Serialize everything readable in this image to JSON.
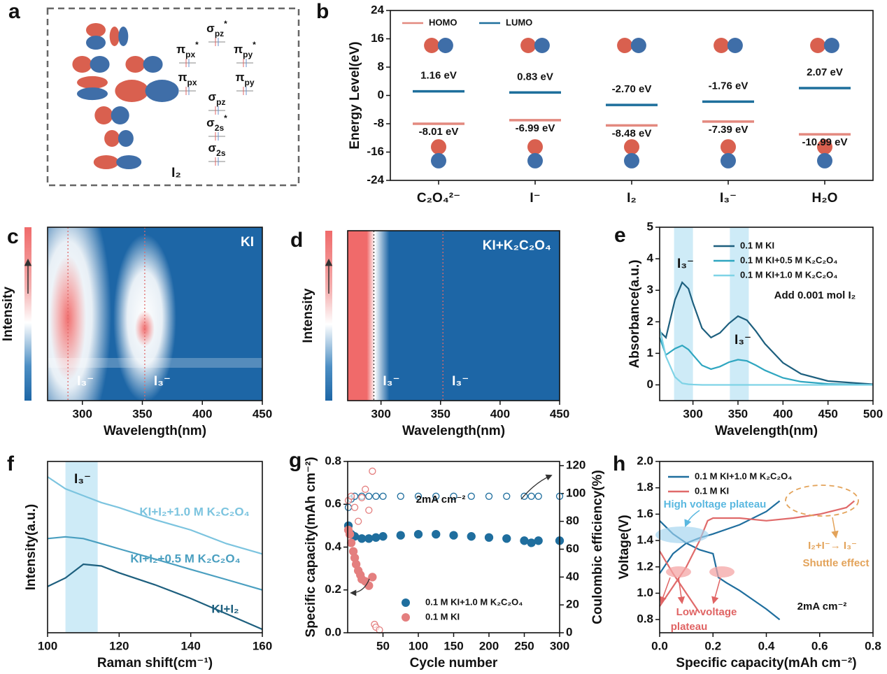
{
  "chart_data": [
    {
      "type": "diagram",
      "panel": "a",
      "title": "I₂",
      "levels": [
        {
          "symbol": "σ",
          "sub": "pz",
          "sup": "*"
        },
        {
          "symbol": "π",
          "sub": "px",
          "sup": "*"
        },
        {
          "symbol": "π",
          "sub": "py",
          "sup": "*"
        },
        {
          "symbol": "π",
          "sub": "px"
        },
        {
          "symbol": "π",
          "sub": "py"
        },
        {
          "symbol": "σ",
          "sub": "pz"
        },
        {
          "symbol": "σ",
          "sub": "2s",
          "sup": "*"
        },
        {
          "symbol": "σ",
          "sub": "2s"
        }
      ]
    },
    {
      "type": "energy_levels",
      "panel": "b",
      "ylabel": "Energy Level(eV)",
      "categories": [
        "C₂O₄²⁻",
        "I⁻",
        "I₂",
        "I₃⁻",
        "H₂O"
      ],
      "ylim": [
        -24,
        24
      ],
      "yticks": [
        -24,
        -16,
        -8,
        0,
        8,
        16,
        24
      ],
      "legend": "upper left",
      "series": [
        {
          "name": "HOMO",
          "color": "#e3897f",
          "values": [
            -8.01,
            -6.99,
            -8.48,
            -7.39,
            -10.99
          ],
          "value_labels": [
            "-8.01 eV",
            "-6.99 eV",
            "-8.48 eV",
            "-7.39 eV",
            "-10.99 eV"
          ]
        },
        {
          "name": "LUMO",
          "color": "#1e6f9c",
          "values": [
            1.16,
            0.83,
            -2.7,
            -1.76,
            2.07
          ],
          "value_labels": [
            "1.16 eV",
            "0.83 eV",
            "-2.70 eV",
            "-1.76 eV",
            "2.07 eV"
          ]
        }
      ]
    },
    {
      "type": "heatmap",
      "panel": "c",
      "title": "KI",
      "xlabel": "Wavelength(nm)",
      "ylabel": "Intensity",
      "xlim": [
        271,
        450
      ],
      "xticks": [
        300,
        350,
        400,
        450
      ],
      "peaks": [
        288,
        352
      ],
      "peak_labels": [
        "I₃⁻",
        "I₃⁻"
      ]
    },
    {
      "type": "heatmap",
      "panel": "d",
      "title": "KI+K₂C₂O₄",
      "xlabel": "Wavelength(nm)",
      "ylabel": "Intensity",
      "xlim": [
        272,
        450
      ],
      "xticks": [
        300,
        350,
        400,
        450
      ],
      "peaks": [
        294,
        352
      ],
      "peak_labels": [
        "I₃⁻",
        "I₃⁻"
      ]
    },
    {
      "type": "line",
      "panel": "e",
      "xlabel": "Wavelength(nm)",
      "ylabel": "Absorbance(a.u.)",
      "xlim": [
        263,
        500
      ],
      "xticks": [
        300,
        350,
        400,
        450,
        500
      ],
      "ylim": [
        -0.5,
        5
      ],
      "yticks": [
        0,
        1,
        2,
        3,
        4,
        5
      ],
      "legend": "upper right",
      "bands": [
        [
          279,
          300
        ],
        [
          341,
          362
        ]
      ],
      "band_labels": [
        "I₃⁻",
        "I₃⁻"
      ],
      "annotations": [
        {
          "text": "Add 0.001 mol I₂",
          "color": "#111111"
        }
      ],
      "x": [
        263,
        270,
        280,
        288,
        295,
        300,
        310,
        320,
        330,
        340,
        350,
        360,
        370,
        380,
        400,
        420,
        450,
        500
      ],
      "series": [
        {
          "name": "0.1 M KI",
          "color": "#1d5f7e",
          "values": [
            1.7,
            1.5,
            2.7,
            3.25,
            3.05,
            2.6,
            1.8,
            1.5,
            1.65,
            1.95,
            2.18,
            2.05,
            1.7,
            1.3,
            0.7,
            0.35,
            0.12,
            0.02
          ]
        },
        {
          "name": "0.1 M KI+0.5 M K₂C₂O₄",
          "color": "#2fa6c0",
          "values": [
            1.5,
            0.95,
            1.15,
            1.25,
            1.12,
            0.95,
            0.62,
            0.5,
            0.58,
            0.72,
            0.8,
            0.76,
            0.62,
            0.46,
            0.22,
            0.1,
            0.03,
            0.0
          ]
        },
        {
          "name": "0.1 M KI+1.0 M K₂C₂O₄",
          "color": "#7fd3e6",
          "values": [
            1.8,
            0.9,
            0.25,
            0.05,
            0.02,
            0.01,
            0,
            0,
            0,
            0,
            0,
            0,
            0,
            0,
            0,
            0,
            0,
            0
          ]
        }
      ]
    },
    {
      "type": "line",
      "panel": "f",
      "xlabel": "Raman shift(cm⁻¹)",
      "ylabel": "Intensity(a.u.)",
      "xlim": [
        100,
        160
      ],
      "xticks": [
        100,
        120,
        140,
        160
      ],
      "ylim": [
        0,
        10
      ],
      "bands": [
        [
          105,
          114
        ]
      ],
      "band_labels": [
        "I₃⁻"
      ],
      "x": [
        100,
        105,
        110,
        115,
        120,
        130,
        140,
        150,
        160
      ],
      "series": [
        {
          "name": "KI+I₂+1.0 M K₂C₂O₄",
          "color": "#7cc4df",
          "values": [
            9.1,
            8.4,
            8.0,
            7.6,
            7.3,
            6.6,
            6.0,
            5.2,
            4.6
          ]
        },
        {
          "name": "KI+I₂+0.5 M K₂C₂O₄",
          "color": "#4a9fc0",
          "values": [
            5.5,
            5.6,
            5.5,
            5.2,
            4.9,
            4.3,
            3.7,
            3.1,
            2.5
          ]
        },
        {
          "name": "KI+I₂",
          "color": "#1d5f7e",
          "values": [
            2.7,
            3.2,
            4.0,
            3.9,
            3.5,
            2.8,
            2.0,
            1.1,
            0.2
          ]
        }
      ]
    },
    {
      "type": "scatter",
      "panel": "g",
      "xlabel": "Cycle number",
      "ylabel": "Specific capacity(mAh cm⁻²)",
      "y2label": "Coulombic efficiency(%)",
      "xlim": [
        0,
        300
      ],
      "xticks": [
        50,
        100,
        150,
        200,
        250,
        300
      ],
      "ylim": [
        0,
        0.8
      ],
      "yticks": [
        {
          "value": 0,
          "label": "0.0"
        },
        0.2,
        0.4,
        0.6,
        0.8
      ],
      "y2lim": [
        0,
        123
      ],
      "y2ticks": [
        0,
        20,
        40,
        60,
        80,
        100,
        120
      ],
      "legend": "lower right",
      "annotations": [
        {
          "text": "2mA cm⁻²",
          "color": "#111111"
        }
      ],
      "series": [
        {
          "name": "0.1 M KI+1.0 M K₂C₂O₄",
          "color": "#1f6e9e",
          "marker": "filled",
          "x": [
            1,
            5,
            10,
            20,
            30,
            40,
            50,
            75,
            100,
            125,
            150,
            175,
            200,
            225,
            250,
            260,
            270,
            300
          ],
          "values": [
            0.5,
            0.46,
            0.45,
            0.44,
            0.44,
            0.445,
            0.45,
            0.455,
            0.46,
            0.46,
            0.455,
            0.45,
            0.445,
            0.44,
            0.43,
            0.42,
            0.43,
            0.43
          ]
        },
        {
          "color": "#1f6e9e",
          "marker": "open",
          "axis": "y2",
          "x": [
            1,
            5,
            10,
            20,
            30,
            40,
            50,
            75,
            100,
            125,
            150,
            175,
            200,
            225,
            250,
            260,
            270,
            300
          ],
          "values": [
            90,
            96,
            98,
            98,
            98,
            98,
            98,
            98,
            98,
            98,
            98,
            98,
            98,
            98,
            98,
            98,
            98,
            98
          ]
        },
        {
          "name": "0.1 M KI",
          "color": "#e47f7f",
          "marker": "filled",
          "x": [
            1,
            3,
            5,
            8,
            10,
            12,
            15,
            18,
            20,
            25,
            30,
            35
          ],
          "values": [
            0.48,
            0.46,
            0.42,
            0.38,
            0.35,
            0.32,
            0.29,
            0.27,
            0.25,
            0.24,
            0.22,
            0.26
          ]
        },
        {
          "color": "#e47f7f",
          "marker": "open",
          "axis": "y2",
          "x": [
            1,
            5,
            10,
            15,
            20,
            25,
            30,
            35,
            38,
            40,
            45
          ],
          "values": [
            95,
            98,
            90,
            80,
            97,
            103,
            88,
            116,
            6,
            4,
            2
          ]
        }
      ]
    },
    {
      "type": "line",
      "panel": "h",
      "xlabel": "Specific capacity(mAh cm⁻²)",
      "ylabel": "Voltage(V)",
      "xlim": [
        0,
        0.8
      ],
      "xticks": [
        {
          "value": 0,
          "label": "0.0"
        },
        0.2,
        0.4,
        0.6,
        0.8
      ],
      "ylim": [
        0.7,
        2.0
      ],
      "yticks": [
        0.8,
        {
          "value": 1,
          "label": "1.0"
        },
        1.2,
        1.4,
        1.6,
        1.8,
        {
          "value": 2,
          "label": "2.0"
        }
      ],
      "legend": "upper left",
      "annotations": [
        {
          "text": "High voltage plateau",
          "color": "#5ab8e0"
        },
        {
          "text": "Low voltage",
          "color": "#e06464"
        },
        {
          "text": "plateau",
          "color": "#e06464"
        },
        {
          "text": "I₂+I⁻→ I₃⁻",
          "color": "#e3a35a"
        },
        {
          "text": "Shuttle effect",
          "color": "#e3a35a"
        },
        {
          "text": "2mA cm⁻²",
          "color": "#111111"
        }
      ],
      "series": [
        {
          "name": "0.1 M KI+1.0 M K₂C₂O₄",
          "color": "#1f6e9e",
          "x": [
            0,
            0.05,
            0.1,
            0.15,
            0.2,
            0.3,
            0.4,
            0.45,
            null,
            0,
            0.05,
            0.1,
            0.15,
            0.2,
            0.22,
            0.25,
            0.3,
            0.35,
            0.4,
            0.45
          ],
          "values": [
            1.15,
            1.3,
            1.38,
            1.42,
            1.45,
            1.52,
            1.62,
            1.7,
            null,
            1.55,
            1.45,
            1.38,
            1.33,
            1.3,
            1.12,
            1.08,
            1.02,
            0.95,
            0.88,
            0.8
          ]
        },
        {
          "name": "0.1 M KI",
          "color": "#e06a6a",
          "x": [
            0,
            0.05,
            0.1,
            0.15,
            0.18,
            0.2,
            0.3,
            0.4,
            0.5,
            0.6,
            0.7,
            0.73,
            null,
            0,
            0.05,
            0.1,
            0.15
          ],
          "values": [
            0.9,
            1.05,
            1.2,
            1.4,
            1.55,
            1.57,
            1.57,
            1.55,
            1.57,
            1.6,
            1.65,
            1.7,
            null,
            1.32,
            1.15,
            1.0,
            0.85
          ]
        }
      ]
    }
  ]
}
